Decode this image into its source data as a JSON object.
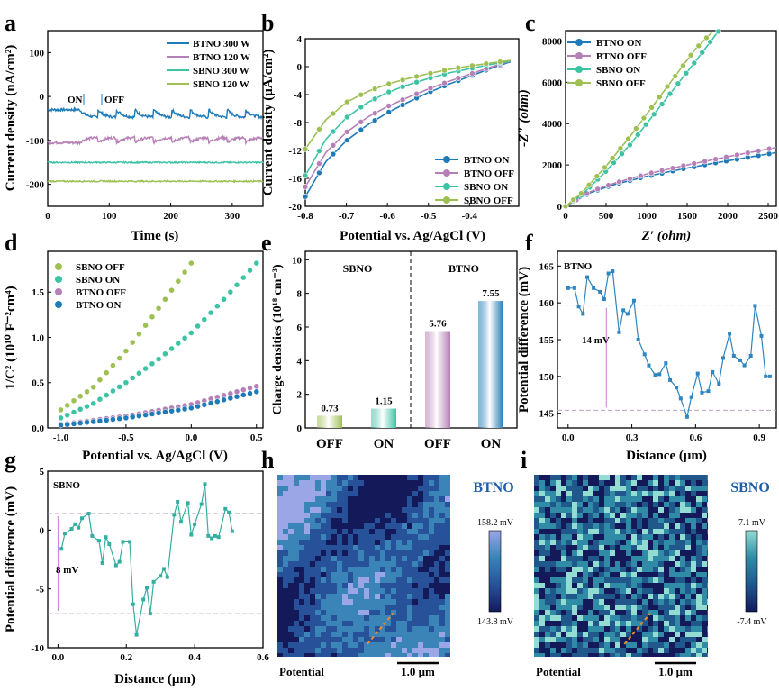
{
  "colors": {
    "btno_on": "#1f7bb8",
    "btno_off": "#b580b6",
    "sbno_on": "#3cc3a4",
    "sbno_off": "#9ebf52",
    "profile": "#34aea0",
    "profile_f": "#2f86bf",
    "ref_line": "#b8a2c2",
    "arrow": "#c77ed0"
  },
  "panels": {
    "a": {
      "label": "a",
      "chart_data": {
        "type": "line",
        "xlabel": "Time (s)",
        "ylabel": "Current density (nA/cm²)",
        "xlim": [
          0,
          350
        ],
        "ylim": [
          -250,
          150
        ],
        "xticks": [
          0,
          100,
          200,
          300
        ],
        "yticks": [
          -200,
          -100,
          0,
          100
        ],
        "legend_position": "top-right",
        "annotations": {
          "on": "ON",
          "off": "OFF"
        },
        "series": [
          {
            "name": "BTNO 300 W",
            "color_key": "btno_on",
            "base": -30,
            "step": -18,
            "period": 30,
            "on_time": 52
          },
          {
            "name": "BTNO 120 W",
            "color_key": "btno_off",
            "base": -105,
            "step": 12,
            "period": 30,
            "on_time": 52
          },
          {
            "name": "SBNO 300 W",
            "color_key": "sbno_on",
            "base": -150,
            "step": 0,
            "period": 30,
            "on_time": 52
          },
          {
            "name": "SBNO 120 W",
            "color_key": "sbno_off",
            "base": -193,
            "step": 0,
            "period": 30,
            "on_time": 52
          }
        ]
      }
    },
    "b": {
      "label": "b",
      "chart_data": {
        "type": "line",
        "xlabel": "Potential vs. Ag/AgCl (V)",
        "ylabel": "Current density (μA/cm²)",
        "xlim": [
          -0.8,
          -0.28
        ],
        "ylim": [
          -20,
          4
        ],
        "xticks": [
          -0.8,
          -0.7,
          -0.6,
          -0.5,
          -0.4
        ],
        "yticks": [
          -20,
          -16,
          -12,
          -8,
          -4,
          0,
          4
        ],
        "legend_position": "bottom-right",
        "series": [
          {
            "name": "BTNO ON",
            "color_key": "btno_on",
            "x": [
              -0.8,
              -0.75,
              -0.7,
              -0.65,
              -0.6,
              -0.55,
              -0.5,
              -0.45,
              -0.4,
              -0.35,
              -0.3
            ],
            "y": [
              -18.6,
              -13.6,
              -10.6,
              -8.4,
              -6.6,
              -5.1,
              -3.7,
              -2.5,
              -1.4,
              -0.3,
              0.7
            ]
          },
          {
            "name": "BTNO OFF",
            "color_key": "btno_off",
            "x": [
              -0.8,
              -0.75,
              -0.7,
              -0.65,
              -0.6,
              -0.55,
              -0.5,
              -0.45,
              -0.4,
              -0.35,
              -0.3
            ],
            "y": [
              -17.2,
              -12.3,
              -9.4,
              -7.3,
              -5.7,
              -4.4,
              -3.2,
              -2.1,
              -1.1,
              -0.1,
              0.8
            ]
          },
          {
            "name": "SBNO ON",
            "color_key": "sbno_on",
            "x": [
              -0.8,
              -0.75,
              -0.7,
              -0.65,
              -0.6,
              -0.55,
              -0.5,
              -0.45,
              -0.4,
              -0.35,
              -0.3
            ],
            "y": [
              -15.6,
              -10.4,
              -7.3,
              -5.2,
              -3.7,
              -2.6,
              -1.7,
              -0.9,
              -0.3,
              0.3,
              0.8
            ]
          },
          {
            "name": "SBNO OFF",
            "color_key": "sbno_off",
            "x": [
              -0.8,
              -0.75,
              -0.7,
              -0.65,
              -0.6,
              -0.55,
              -0.5,
              -0.45,
              -0.4,
              -0.35,
              -0.3
            ],
            "y": [
              -11.8,
              -7.6,
              -5.1,
              -3.6,
              -2.5,
              -1.7,
              -1.0,
              -0.4,
              0.1,
              0.5,
              0.9
            ]
          }
        ]
      }
    },
    "c": {
      "label": "c",
      "chart_data": {
        "type": "line",
        "xlabel": "Z′ (ohm)",
        "ylabel": "-Z″ (ohm)",
        "xlim": [
          0,
          2600
        ],
        "ylim": [
          0,
          8500
        ],
        "xticks": [
          0,
          500,
          1000,
          1500,
          2000,
          2500
        ],
        "yticks": [
          0,
          2000,
          4000,
          6000,
          8000
        ],
        "legend_position": "top-left",
        "series": [
          {
            "name": "BTNO ON",
            "color_key": "btno_on",
            "x": [
              0,
              300,
              600,
              1000,
              1500,
              2000,
              2600
            ],
            "y": [
              0,
              650,
              1050,
              1450,
              1850,
              2200,
              2600
            ]
          },
          {
            "name": "BTNO OFF",
            "color_key": "btno_off",
            "x": [
              0,
              300,
              600,
              1000,
              1500,
              2000,
              2600
            ],
            "y": [
              0,
              700,
              1120,
              1560,
              2000,
              2400,
              2850
            ]
          },
          {
            "name": "SBNO ON",
            "color_key": "sbno_on",
            "x": [
              0,
              200,
              500,
              800,
              1200,
              1600,
              1950
            ],
            "y": [
              0,
              550,
              1700,
              3000,
              5000,
              7000,
              8800
            ]
          },
          {
            "name": "SBNO OFF",
            "color_key": "sbno_off",
            "x": [
              0,
              200,
              500,
              800,
              1200,
              1600,
              1900
            ],
            "y": [
              0,
              650,
              1950,
              3400,
              5500,
              7600,
              8800
            ]
          }
        ]
      }
    },
    "d": {
      "label": "d",
      "chart_data": {
        "type": "scatter",
        "xlabel": "Potential vs. Ag/AgCl (V)",
        "ylabel": "1/C² (10¹⁰ F⁻²cm⁴)",
        "xlim": [
          -1.1,
          0.55
        ],
        "ylim": [
          0,
          1.95
        ],
        "xticks": [
          -1.0,
          -0.5,
          0.0,
          0.5
        ],
        "yticks": [
          0.0,
          0.5,
          1.0,
          1.5
        ],
        "legend_position": "top-left",
        "series": [
          {
            "name": "SBNO OFF",
            "color_key": "sbno_off",
            "x": [
              -1.0,
              -0.75,
              -0.5,
              -0.25,
              0.0
            ],
            "y": [
              0.2,
              0.45,
              0.85,
              1.32,
              1.82
            ]
          },
          {
            "name": "SBNO ON",
            "color_key": "sbno_on",
            "x": [
              -1.0,
              -0.75,
              -0.5,
              -0.25,
              0.0,
              0.25,
              0.5
            ],
            "y": [
              0.11,
              0.27,
              0.5,
              0.76,
              1.05,
              1.42,
              1.82
            ]
          },
          {
            "name": "BTNO OFF",
            "color_key": "btno_off",
            "x": [
              -1.0,
              -0.5,
              0.0,
              0.5
            ],
            "y": [
              0.04,
              0.13,
              0.26,
              0.46
            ]
          },
          {
            "name": "BTNO ON",
            "color_key": "btno_on",
            "x": [
              -1.0,
              -0.5,
              0.0,
              0.5
            ],
            "y": [
              0.03,
              0.11,
              0.22,
              0.4
            ]
          }
        ]
      }
    },
    "e": {
      "label": "e",
      "chart_data": {
        "type": "bar",
        "ylabel": "Charge densities (10¹⁸ cm⁻³)",
        "ylim": [
          0,
          10.5
        ],
        "yticks": [
          0,
          2,
          4,
          6,
          8,
          10
        ],
        "categories": [
          "OFF",
          "ON",
          "OFF",
          "ON"
        ],
        "values": [
          0.73,
          1.15,
          5.76,
          7.55
        ],
        "value_labels": [
          "0.73",
          "1.15",
          "5.76",
          "7.55"
        ],
        "bar_color_keys": [
          "sbno_off",
          "sbno_on",
          "btno_off",
          "btno_on"
        ],
        "groups": [
          "SBNO",
          "BTNO"
        ]
      }
    },
    "f": {
      "label": "f",
      "chart_data": {
        "type": "line",
        "sample": "BTNO",
        "xlabel": "Distance (μm)",
        "ylabel": "Potential difference (mV)",
        "xlim": [
          -0.05,
          0.98
        ],
        "ylim": [
          143,
          167
        ],
        "xticks": [
          0.0,
          0.3,
          0.6,
          0.9
        ],
        "yticks": [
          145,
          150,
          155,
          160,
          165
        ],
        "annotation": "14 mV",
        "ref_lines": [
          159.7,
          145.4
        ],
        "x": [
          0.0,
          0.03,
          0.05,
          0.07,
          0.09,
          0.12,
          0.15,
          0.17,
          0.19,
          0.21,
          0.24,
          0.26,
          0.28,
          0.31,
          0.33,
          0.36,
          0.38,
          0.41,
          0.43,
          0.46,
          0.48,
          0.51,
          0.53,
          0.56,
          0.58,
          0.61,
          0.63,
          0.66,
          0.68,
          0.71,
          0.73,
          0.76,
          0.78,
          0.81,
          0.83,
          0.86,
          0.88,
          0.91,
          0.93,
          0.95
        ],
        "y": [
          162,
          162,
          159.5,
          158.5,
          163.5,
          162,
          161.5,
          160.5,
          164,
          164.3,
          156,
          159,
          158.5,
          160.3,
          155,
          153,
          151.5,
          150.2,
          150.3,
          151.8,
          149.5,
          148.5,
          147,
          144.5,
          147.2,
          150.4,
          147.8,
          148,
          150.6,
          149,
          152.5,
          155.8,
          152.8,
          152.2,
          151.5,
          152.8,
          159.6,
          155.5,
          150,
          150
        ]
      }
    },
    "g": {
      "label": "g",
      "chart_data": {
        "type": "line",
        "sample": "SBNO",
        "xlabel": "Distance (μm)",
        "ylabel": "Potential difference (mV)",
        "xlim": [
          -0.03,
          0.6
        ],
        "ylim": [
          -10,
          5
        ],
        "xticks": [
          0.0,
          0.2,
          0.4,
          0.6
        ],
        "yticks": [
          -10,
          -5,
          0,
          5
        ],
        "annotation": "8 mV",
        "ref_lines": [
          1.4,
          -7.1
        ],
        "x": [
          0.01,
          0.02,
          0.04,
          0.05,
          0.06,
          0.07,
          0.09,
          0.1,
          0.12,
          0.13,
          0.14,
          0.15,
          0.17,
          0.18,
          0.19,
          0.21,
          0.22,
          0.23,
          0.25,
          0.26,
          0.27,
          0.28,
          0.3,
          0.31,
          0.32,
          0.34,
          0.35,
          0.36,
          0.38,
          0.39,
          0.4,
          0.42,
          0.43,
          0.44,
          0.45,
          0.46,
          0.47,
          0.49,
          0.5,
          0.51
        ],
        "y": [
          -1.6,
          -0.3,
          0.1,
          0.5,
          0.2,
          1.0,
          1.4,
          -0.5,
          -0.9,
          -2.8,
          -0.6,
          -1.2,
          -3.0,
          -2.7,
          -1.0,
          -1.0,
          -6.3,
          -8.9,
          -5.9,
          -4.9,
          -7.1,
          -4.4,
          -3.9,
          -3.3,
          -4.0,
          1.3,
          2.4,
          0.7,
          2.3,
          -0.4,
          0.5,
          2.2,
          3.9,
          -0.5,
          -0.7,
          -0.5,
          -0.6,
          1.8,
          1.5,
          -0.1
        ]
      }
    },
    "h": {
      "label": "h",
      "sample": "BTNO",
      "scale_max": "158.2 mV",
      "scale_min": "143.8 mV",
      "caption": "Potential",
      "scalebar": "1.0 μm",
      "colormap": [
        "#14195a",
        "#27529a",
        "#3a84b8",
        "#9aa6e6"
      ]
    },
    "i": {
      "label": "i",
      "sample": "SBNO",
      "scale_max": "7.1 mV",
      "scale_min": "-7.4 mV",
      "caption": "Potential",
      "scalebar": "1.0 μm",
      "colormap": [
        "#14195a",
        "#20588c",
        "#2f8ba6",
        "#93dcd2"
      ]
    }
  }
}
